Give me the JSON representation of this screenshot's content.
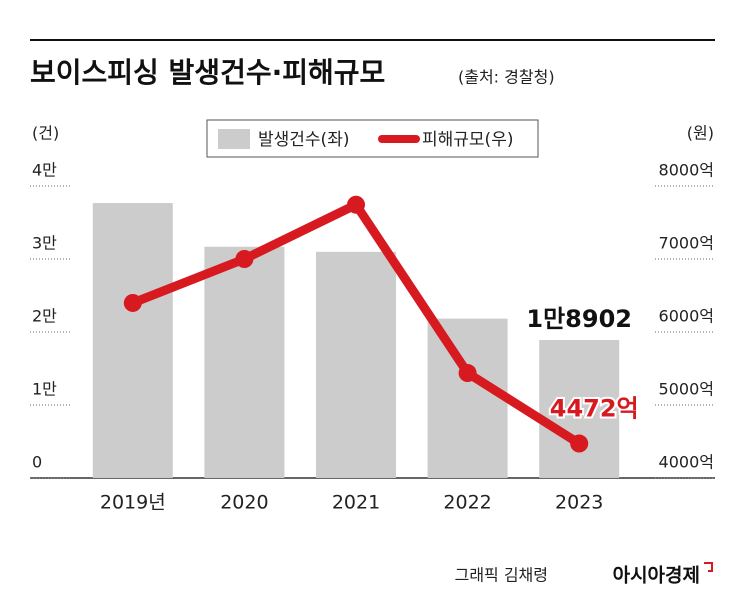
{
  "chart_data": {
    "type": "bar",
    "title": "보이스피싱 발생건수·피해규모",
    "subtitle": "(출처: 경찰청)",
    "y_label": "(건)",
    "y2_label": "(원)",
    "categories": [
      "2019년",
      "2020",
      "2021",
      "2022",
      "2023"
    ],
    "series": [
      {
        "name": "발생건수(좌)",
        "type": "bar",
        "color": "#cccccc",
        "values": [
          37667,
          31681,
          30982,
          21832,
          18902
        ],
        "value_labels": [
          null,
          null,
          null,
          null,
          "1만8902"
        ]
      },
      {
        "name": "피해규모(우)",
        "type": "line",
        "axis": "y2",
        "color": "#d71920",
        "values": [
          6398,
          7000,
          7744,
          5438,
          4472
        ],
        "value_labels": [
          null,
          null,
          null,
          null,
          "4472억"
        ]
      }
    ],
    "ylim": [
      0,
      40000
    ],
    "yticks": [
      0,
      {
        "value": 10000,
        "label": "1만"
      },
      {
        "value": 20000,
        "label": "2만"
      },
      {
        "value": 30000,
        "label": "3만"
      },
      {
        "value": 40000,
        "label": "4만"
      }
    ],
    "y2lim": [
      4000,
      8000
    ],
    "y2ticks": [
      {
        "value": 4000,
        "label": "4000억"
      },
      {
        "value": 5000,
        "label": "5000억"
      },
      {
        "value": 6000,
        "label": "6000억"
      },
      {
        "value": 7000,
        "label": "7000억"
      },
      {
        "value": 8000,
        "label": "8000억"
      }
    ],
    "credit": "그래픽 김채령",
    "publisher": "아시아경제"
  }
}
